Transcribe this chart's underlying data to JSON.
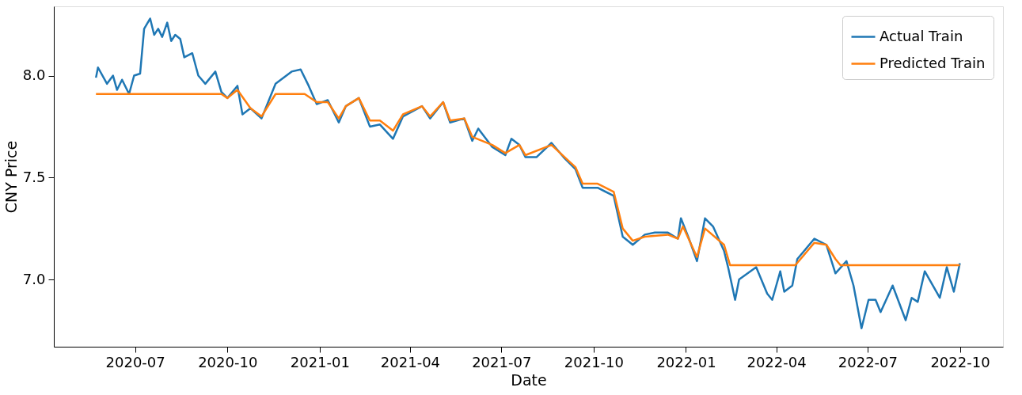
{
  "chart_data": {
    "type": "line",
    "xlabel": "Date",
    "ylabel": "CNY Price",
    "xlim": [
      "2020-04-11",
      "2022-11-13"
    ],
    "xticks": [
      "2020-07",
      "2020-10",
      "2021-01",
      "2021-04",
      "2021-07",
      "2021-10",
      "2022-01",
      "2022-04",
      "2022-07",
      "2022-10"
    ],
    "ylim": [
      6.67,
      8.34
    ],
    "yticks": [
      {
        "value": 7,
        "label": "7.0"
      },
      {
        "value": 7.5,
        "label": "7.5"
      },
      {
        "value": 8,
        "label": "8.0"
      }
    ],
    "grid": false,
    "legend": "top right",
    "line_style": "solid",
    "marker": "none",
    "series": [
      {
        "name": "Actual Train",
        "color": "#1f77b4",
        "x": [
          "2020-05-23",
          "2020-05-25",
          "2020-06-03",
          "2020-06-09",
          "2020-06-13",
          "2020-06-18",
          "2020-06-25",
          "2020-06-30",
          "2020-07-06",
          "2020-07-10",
          "2020-07-16",
          "2020-07-20",
          "2020-07-24",
          "2020-07-28",
          "2020-08-02",
          "2020-08-06",
          "2020-08-10",
          "2020-08-15",
          "2020-08-19",
          "2020-08-27",
          "2020-09-02",
          "2020-09-09",
          "2020-09-19",
          "2020-09-25",
          "2020-10-01",
          "2020-10-11",
          "2020-10-16",
          "2020-10-24",
          "2020-11-04",
          "2020-11-18",
          "2020-12-04",
          "2020-12-13",
          "2020-12-21",
          "2020-12-29",
          "2021-01-09",
          "2021-01-20",
          "2021-01-27",
          "2021-02-09",
          "2021-02-20",
          "2021-03-02",
          "2021-03-15",
          "2021-03-25",
          "2021-04-13",
          "2021-04-21",
          "2021-05-04",
          "2021-05-11",
          "2021-05-25",
          "2021-06-02",
          "2021-06-08",
          "2021-06-22",
          "2021-07-05",
          "2021-07-11",
          "2021-07-19",
          "2021-07-25",
          "2021-08-05",
          "2021-08-20",
          "2021-09-01",
          "2021-09-13",
          "2021-09-20",
          "2021-10-05",
          "2021-10-21",
          "2021-10-30",
          "2021-11-09",
          "2021-11-21",
          "2021-12-01",
          "2021-12-14",
          "2021-12-24",
          "2021-12-27",
          "2022-01-04",
          "2022-01-12",
          "2022-01-20",
          "2022-01-28",
          "2022-02-08",
          "2022-02-12",
          "2022-02-19",
          "2022-02-23",
          "2022-03-12",
          "2022-03-23",
          "2022-03-28",
          "2022-04-05",
          "2022-04-09",
          "2022-04-17",
          "2022-04-22",
          "2022-05-09",
          "2022-05-21",
          "2022-05-30",
          "2022-06-10",
          "2022-06-17",
          "2022-06-25",
          "2022-07-02",
          "2022-07-09",
          "2022-07-14",
          "2022-07-26",
          "2022-08-08",
          "2022-08-14",
          "2022-08-20",
          "2022-08-27",
          "2022-09-11",
          "2022-09-18",
          "2022-09-25",
          "2022-10-01"
        ],
        "values": [
          7.99,
          8.04,
          7.96,
          8.0,
          7.93,
          7.98,
          7.91,
          8.0,
          8.01,
          8.23,
          8.28,
          8.2,
          8.23,
          8.19,
          8.26,
          8.17,
          8.2,
          8.18,
          8.09,
          8.11,
          8.0,
          7.96,
          8.02,
          7.92,
          7.89,
          7.95,
          7.81,
          7.84,
          7.79,
          7.96,
          8.02,
          8.03,
          7.95,
          7.86,
          7.88,
          7.77,
          7.85,
          7.89,
          7.75,
          7.76,
          7.69,
          7.8,
          7.85,
          7.79,
          7.87,
          7.77,
          7.79,
          7.68,
          7.74,
          7.65,
          7.61,
          7.69,
          7.66,
          7.6,
          7.6,
          7.67,
          7.6,
          7.54,
          7.45,
          7.45,
          7.41,
          7.21,
          7.17,
          7.22,
          7.23,
          7.23,
          7.2,
          7.3,
          7.2,
          7.09,
          7.3,
          7.26,
          7.14,
          7.06,
          6.9,
          7.0,
          7.06,
          6.93,
          6.9,
          7.04,
          6.94,
          6.97,
          7.1,
          7.2,
          7.17,
          7.03,
          7.09,
          6.97,
          6.76,
          6.9,
          6.9,
          6.84,
          6.97,
          6.8,
          6.91,
          6.89,
          7.04,
          6.91,
          7.06,
          6.94,
          7.08
        ]
      },
      {
        "name": "Predicted Train",
        "color": "#ff7f0e",
        "x": [
          "2020-05-23",
          "2020-09-25",
          "2020-10-01",
          "2020-10-11",
          "2020-10-24",
          "2020-11-04",
          "2020-11-18",
          "2020-12-17",
          "2020-12-29",
          "2021-01-09",
          "2021-01-20",
          "2021-01-27",
          "2021-02-09",
          "2021-02-20",
          "2021-03-02",
          "2021-03-15",
          "2021-03-25",
          "2021-04-13",
          "2021-04-21",
          "2021-05-04",
          "2021-05-11",
          "2021-05-25",
          "2021-06-02",
          "2021-06-22",
          "2021-07-05",
          "2021-07-19",
          "2021-07-25",
          "2021-08-20",
          "2021-09-13",
          "2021-09-20",
          "2021-10-05",
          "2021-10-21",
          "2021-10-30",
          "2021-11-09",
          "2021-11-21",
          "2021-12-14",
          "2021-12-24",
          "2021-12-29",
          "2022-01-12",
          "2022-01-20",
          "2022-02-08",
          "2022-02-14",
          "2022-04-20",
          "2022-05-09",
          "2022-05-21",
          "2022-05-30",
          "2022-06-04",
          "2022-10-01"
        ],
        "values": [
          7.91,
          7.91,
          7.89,
          7.93,
          7.84,
          7.8,
          7.91,
          7.91,
          7.87,
          7.87,
          7.79,
          7.85,
          7.89,
          7.78,
          7.78,
          7.73,
          7.81,
          7.85,
          7.8,
          7.87,
          7.78,
          7.79,
          7.7,
          7.66,
          7.62,
          7.66,
          7.61,
          7.66,
          7.55,
          7.47,
          7.47,
          7.43,
          7.25,
          7.19,
          7.21,
          7.22,
          7.2,
          7.26,
          7.11,
          7.25,
          7.17,
          7.07,
          7.07,
          7.18,
          7.17,
          7.1,
          7.07,
          7.07
        ]
      }
    ]
  }
}
